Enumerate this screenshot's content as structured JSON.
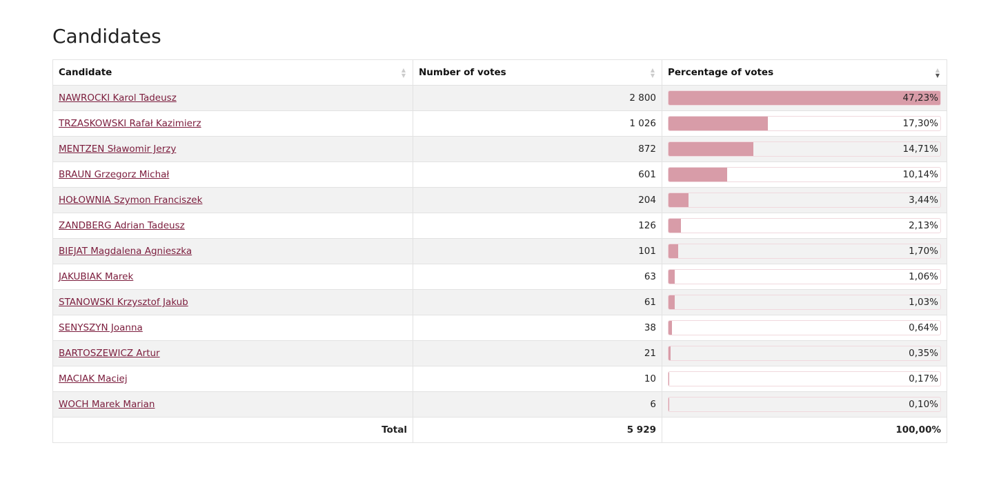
{
  "title": "Candidates",
  "headers": {
    "candidate": "Candidate",
    "votes": "Number of votes",
    "percentage": "Percentage of votes"
  },
  "colors": {
    "bar": "#d89ca8",
    "link": "#7b1c3c"
  },
  "rows": [
    {
      "name": "NAWROCKI Karol Tadeusz",
      "votes": "2 800",
      "pct_label": "47,23%",
      "pct": 47.23
    },
    {
      "name": "TRZASKOWSKI Rafał Kazimierz",
      "votes": "1 026",
      "pct_label": "17,30%",
      "pct": 17.3
    },
    {
      "name": "MENTZEN Sławomir Jerzy",
      "votes": "872",
      "pct_label": "14,71%",
      "pct": 14.71
    },
    {
      "name": "BRAUN Grzegorz Michał",
      "votes": "601",
      "pct_label": "10,14%",
      "pct": 10.14
    },
    {
      "name": "HOŁOWNIA Szymon Franciszek",
      "votes": "204",
      "pct_label": "3,44%",
      "pct": 3.44
    },
    {
      "name": "ZANDBERG Adrian Tadeusz",
      "votes": "126",
      "pct_label": "2,13%",
      "pct": 2.13
    },
    {
      "name": "BIEJAT Magdalena Agnieszka",
      "votes": "101",
      "pct_label": "1,70%",
      "pct": 1.7
    },
    {
      "name": "JAKUBIAK Marek",
      "votes": "63",
      "pct_label": "1,06%",
      "pct": 1.06
    },
    {
      "name": "STANOWSKI Krzysztof Jakub",
      "votes": "61",
      "pct_label": "1,03%",
      "pct": 1.03
    },
    {
      "name": "SENYSZYN Joanna",
      "votes": "38",
      "pct_label": "0,64%",
      "pct": 0.64
    },
    {
      "name": "BARTOSZEWICZ Artur",
      "votes": "21",
      "pct_label": "0,35%",
      "pct": 0.35
    },
    {
      "name": "MACIAK Maciej",
      "votes": "10",
      "pct_label": "0,17%",
      "pct": 0.17
    },
    {
      "name": "WOCH Marek Marian",
      "votes": "6",
      "pct_label": "0,10%",
      "pct": 0.1
    }
  ],
  "total": {
    "label": "Total",
    "votes": "5 929",
    "pct_label": "100,00%"
  }
}
